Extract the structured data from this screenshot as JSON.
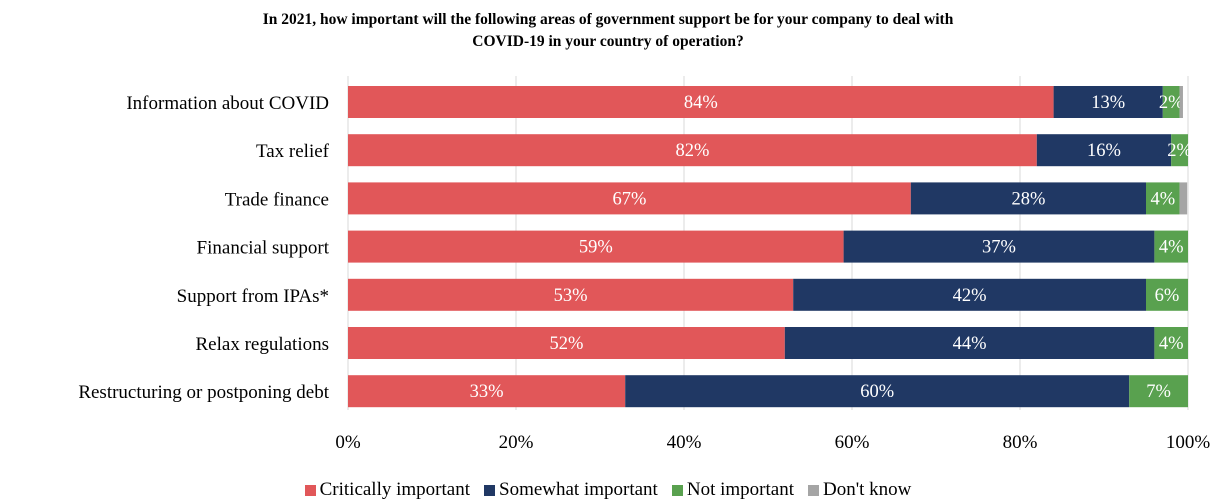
{
  "title_line1": "In 2021, how important will the following areas of government support be for your company to deal with",
  "title_line2": "COVID-19 in your country of operation?",
  "chart_data": {
    "type": "bar",
    "orientation": "horizontal",
    "stacked": true,
    "categories": [
      "Information about COVID",
      "Tax relief",
      "Trade finance",
      "Financial support",
      "Support from IPAs*",
      "Relax regulations",
      "Restructuring or postponing debt"
    ],
    "series": [
      {
        "name": "Critically important",
        "color": "#e15759",
        "values": [
          84,
          82,
          67,
          59,
          53,
          52,
          33
        ],
        "labels": [
          "84%",
          "82%",
          "67%",
          "59%",
          "53%",
          "52%",
          "33%"
        ]
      },
      {
        "name": "Somewhat important",
        "color": "#203864",
        "values": [
          13,
          16,
          28,
          37,
          42,
          44,
          60
        ],
        "labels": [
          "13%",
          "16%",
          "28%",
          "37%",
          "42%",
          "44%",
          "60%"
        ]
      },
      {
        "name": "Not important",
        "color": "#59a14f",
        "values": [
          2,
          2,
          4,
          4,
          6,
          4,
          7
        ],
        "labels": [
          "2%",
          "2%",
          "4%",
          "4%",
          "6%",
          "4%",
          "7%"
        ]
      },
      {
        "name": "Don't know",
        "color": "#a5a5a5",
        "values": [
          0.4,
          0.2,
          0.9,
          0.1,
          0.1,
          0.1,
          0.6
        ],
        "labels": [
          "",
          "",
          "",
          "",
          "",
          "",
          ""
        ]
      }
    ],
    "xlim": [
      0,
      100
    ],
    "xticks": [
      0,
      20,
      40,
      60,
      80,
      100
    ],
    "xtick_labels": [
      "0%",
      "20%",
      "40%",
      "60%",
      "80%",
      "100%"
    ],
    "grid": "vertical",
    "legend_position": "bottom"
  }
}
